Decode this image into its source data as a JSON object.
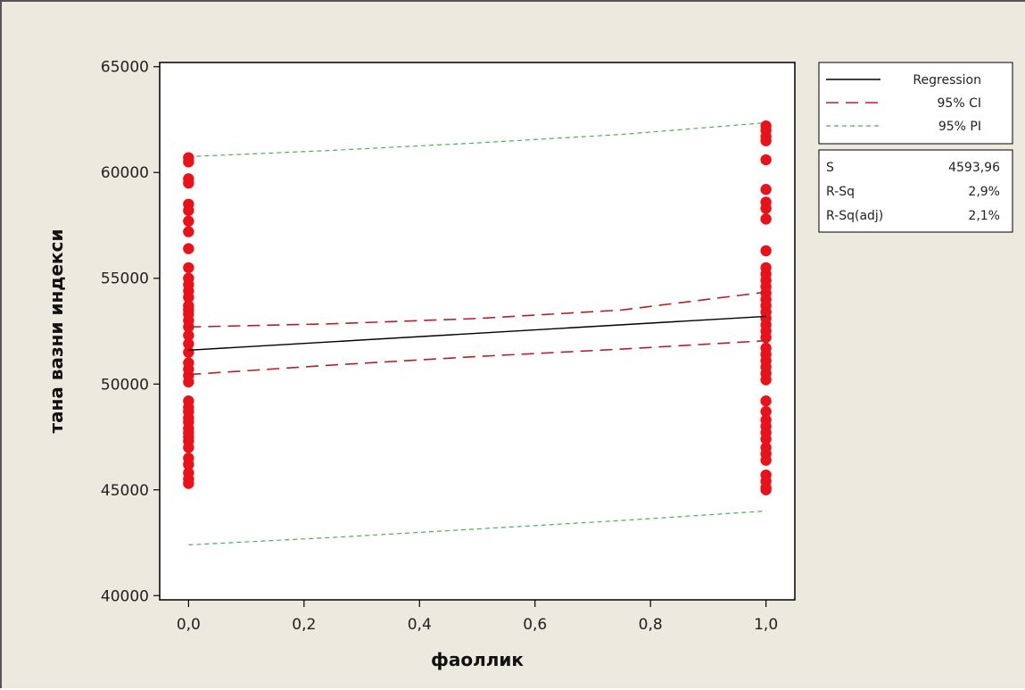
{
  "chart_data": {
    "type": "scatter",
    "xlabel": "фаоллик",
    "ylabel": "тана вазни индекси",
    "xlim": [
      -0.05,
      1.05
    ],
    "ylim": [
      39800,
      65200
    ],
    "x_ticks": [
      0.0,
      0.2,
      0.4,
      0.6,
      0.8,
      1.0
    ],
    "x_tick_labels": [
      "0,0",
      "0,2",
      "0,4",
      "0,6",
      "0,8",
      "1,0"
    ],
    "y_ticks": [
      40000,
      45000,
      50000,
      55000,
      60000,
      65000
    ],
    "y_tick_labels": [
      "40000",
      "45000",
      "50000",
      "55000",
      "60000",
      "65000"
    ],
    "grid": false,
    "legend_position": "right",
    "colors": {
      "points": "#e8121a",
      "regression": "#000000",
      "ci": "#b22222",
      "pi": "#4caf50",
      "plot_bg": "#ffffff",
      "outer_bg": "#ece9df"
    },
    "series": [
      {
        "name": "Regression",
        "style": "solid",
        "x": [
          0.0,
          1.0
        ],
        "y": [
          51600,
          53200
        ]
      },
      {
        "name": "95% CI",
        "style": "dashed",
        "x": [
          0.0,
          0.25,
          0.5,
          0.75,
          1.0
        ],
        "upper": [
          52700,
          52850,
          53100,
          53500,
          54350
        ],
        "lower": [
          50450,
          50900,
          51300,
          51650,
          52050
        ]
      },
      {
        "name": "95% PI",
        "style": "dotted",
        "x": [
          0.0,
          0.25,
          0.5,
          0.75,
          1.0
        ],
        "upper": [
          60750,
          61050,
          61400,
          61800,
          62350
        ],
        "lower": [
          42400,
          42750,
          43150,
          43550,
          44000
        ]
      }
    ],
    "points": {
      "x0": 0.0,
      "y0": [
        60700,
        60500,
        59700,
        59500,
        58500,
        58200,
        57700,
        57200,
        56400,
        55500,
        55000,
        54700,
        54400,
        54100,
        53700,
        53500,
        53300,
        53000,
        52700,
        52300,
        51900,
        51500,
        51000,
        50700,
        50400,
        50100,
        49200,
        48900,
        48700,
        48400,
        48200,
        47900,
        47700,
        47500,
        47300,
        47000,
        46500,
        46200,
        45800,
        45500,
        45300
      ],
      "x1": 1.0,
      "y1": [
        62200,
        62000,
        61700,
        61500,
        60600,
        59200,
        58600,
        58300,
        57800,
        56300,
        55500,
        55200,
        54900,
        54600,
        54300,
        54000,
        53700,
        53400,
        53100,
        52800,
        52500,
        52200,
        51700,
        51400,
        51100,
        50800,
        50500,
        50200,
        49200,
        48700,
        48300,
        48000,
        47700,
        47400,
        47000,
        46700,
        46400,
        45700,
        45400,
        45100,
        45000
      ]
    },
    "stats": [
      {
        "label": "S",
        "value": "4593,96"
      },
      {
        "label": "R-Sq",
        "value": "2,9%"
      },
      {
        "label": "R-Sq(adj)",
        "value": "2,1%"
      }
    ]
  }
}
